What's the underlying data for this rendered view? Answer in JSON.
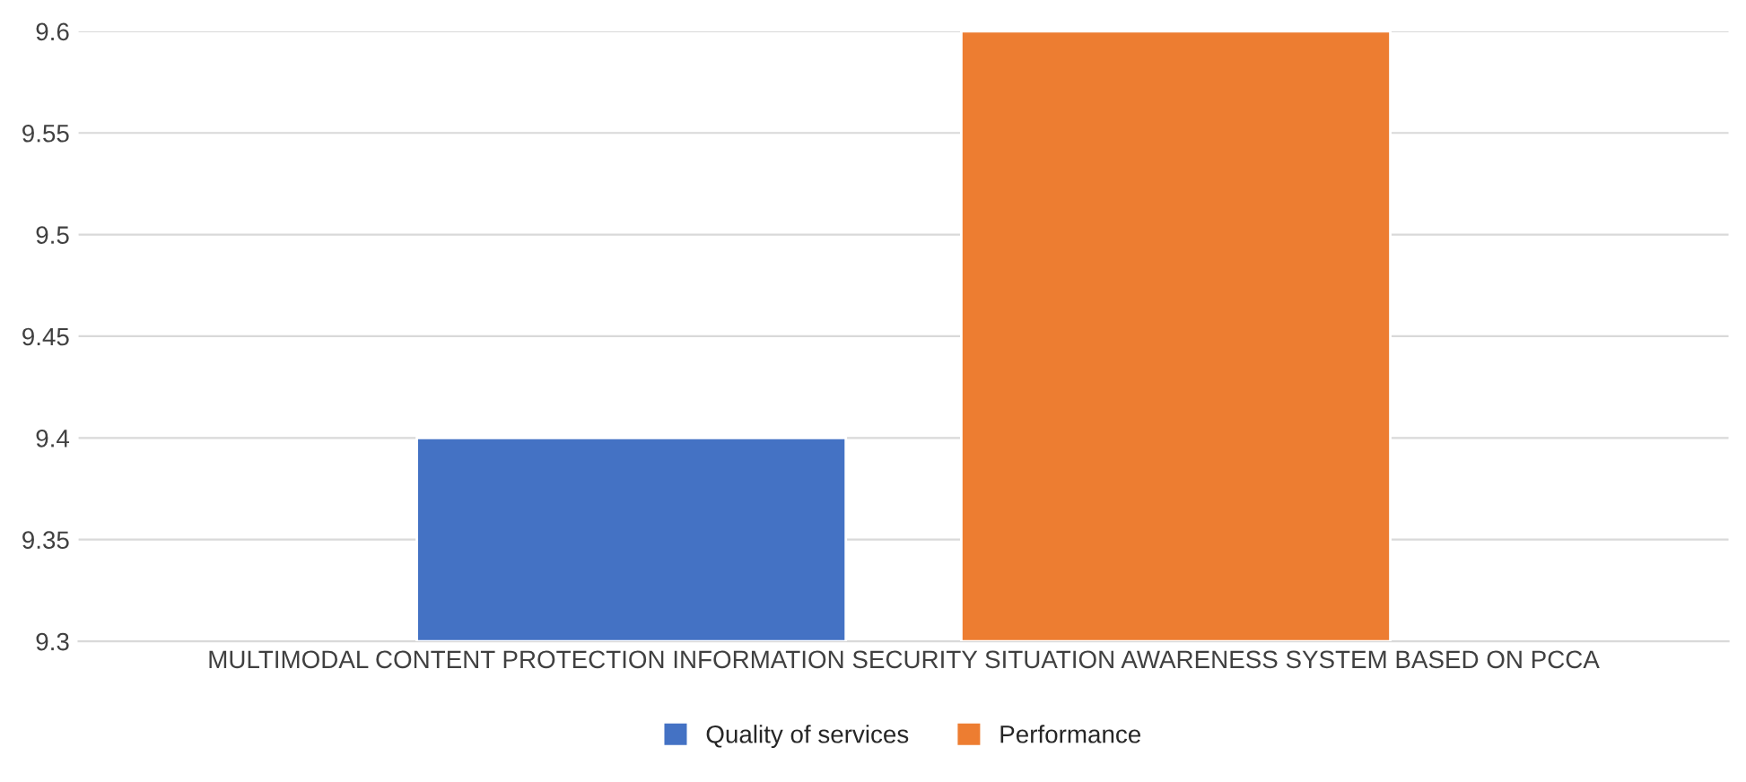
{
  "chart_data": {
    "type": "bar",
    "categories": [
      "MULTIMODAL CONTENT PROTECTION INFORMATION SECURITY SITUATION AWARENESS SYSTEM BASED ON PCCA"
    ],
    "series": [
      {
        "name": "Quality of services",
        "color": "#4472c4",
        "values": [
          9.4
        ]
      },
      {
        "name": "Performance",
        "color": "#ed7d31",
        "values": [
          9.6
        ]
      }
    ],
    "ylim": [
      9.3,
      9.6
    ],
    "yticks": [
      9.3,
      9.35,
      9.4,
      9.45,
      9.5,
      9.55,
      9.6
    ],
    "grid": "y",
    "legend": "bottom"
  }
}
